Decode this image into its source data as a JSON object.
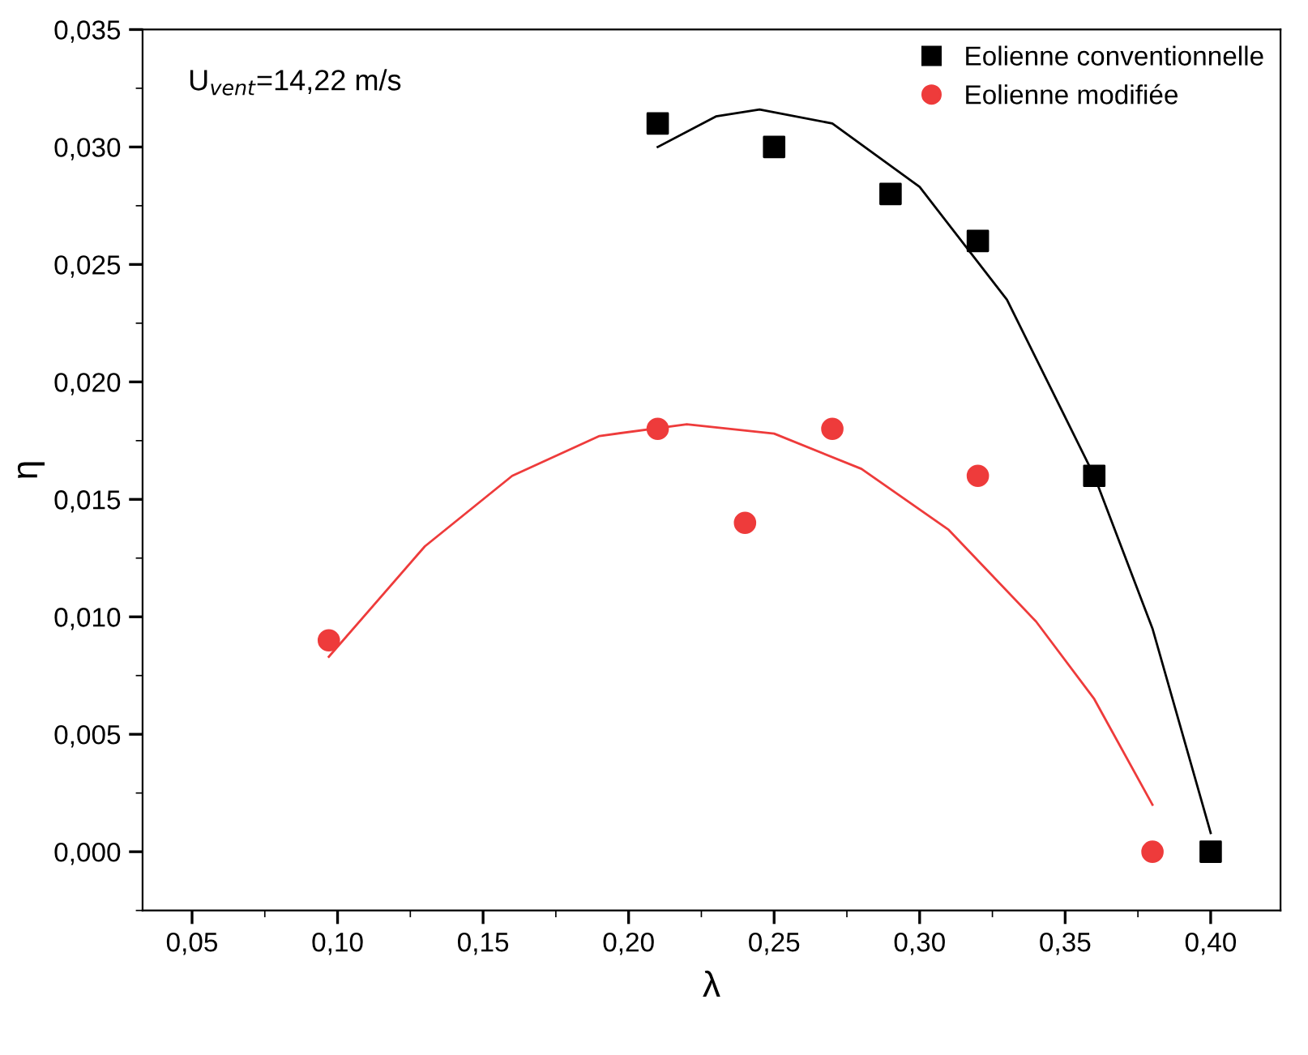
{
  "chart_data": {
    "type": "scatter",
    "xlabel": "λ",
    "ylabel": "η",
    "annotations": [
      "U$_{vent}$=14,22 m/s"
    ],
    "series": [
      {
        "name": "Eolienne conventionnelle",
        "color": "#000000",
        "marker": "square",
        "x": [
          0.21,
          0.25,
          0.29,
          0.32,
          0.36,
          0.4
        ],
        "values": [
          0.031,
          0.03,
          0.028,
          0.026,
          0.016,
          0.0
        ]
      },
      {
        "name": "Eolienne modifiée",
        "color": "#ee3b3b",
        "marker": "circle",
        "x": [
          0.097,
          0.21,
          0.24,
          0.27,
          0.32,
          0.38
        ],
        "values": [
          0.009,
          0.018,
          0.014,
          0.018,
          0.016,
          0.0
        ]
      },
      {
        "color": "#000000",
        "type": "line",
        "marker": "none",
        "x": [
          0.21,
          0.23,
          0.245,
          0.27,
          0.3,
          0.33,
          0.36,
          0.38,
          0.4
        ],
        "values": [
          0.03,
          0.0313,
          0.0316,
          0.031,
          0.0283,
          0.0235,
          0.016,
          0.0095,
          0.0008
        ]
      },
      {
        "color": "#ee3b3b",
        "type": "line",
        "marker": "none",
        "x": [
          0.097,
          0.13,
          0.16,
          0.19,
          0.22,
          0.25,
          0.28,
          0.31,
          0.34,
          0.36,
          0.38
        ],
        "values": [
          0.0083,
          0.013,
          0.016,
          0.0177,
          0.0182,
          0.0178,
          0.0163,
          0.0137,
          0.0098,
          0.0065,
          0.002
        ]
      }
    ],
    "xlim": [
      0.033,
      0.424
    ],
    "ylim": [
      -0.0025,
      0.035
    ],
    "xticks": [
      {
        "value": 0.05,
        "label": "0,05"
      },
      {
        "value": 0.1,
        "label": "0,10"
      },
      {
        "value": 0.15,
        "label": "0,15"
      },
      {
        "value": 0.2,
        "label": "0,20"
      },
      {
        "value": 0.25,
        "label": "0,25"
      },
      {
        "value": 0.3,
        "label": "0,30"
      },
      {
        "value": 0.35,
        "label": "0,35"
      },
      {
        "value": 0.4,
        "label": "0,40"
      }
    ],
    "yticks": [
      {
        "value": 0.0,
        "label": "0,000"
      },
      {
        "value": 0.005,
        "label": "0,005"
      },
      {
        "value": 0.01,
        "label": "0,010"
      },
      {
        "value": 0.015,
        "label": "0,015"
      },
      {
        "value": 0.02,
        "label": "0,020"
      },
      {
        "value": 0.025,
        "label": "0,025"
      },
      {
        "value": 0.03,
        "label": "0,030"
      },
      {
        "value": 0.035,
        "label": "0,035"
      }
    ],
    "grid": false,
    "legend": "top right"
  }
}
